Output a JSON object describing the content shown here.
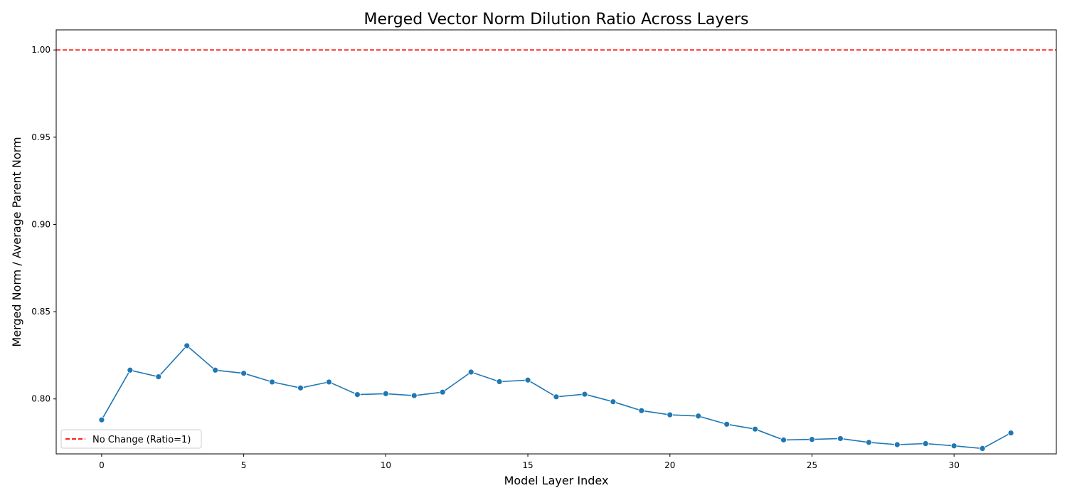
{
  "chart_data": {
    "type": "line",
    "title": "Merged Vector Norm Dilution Ratio Across Layers",
    "xlabel": "Model Layer Index",
    "ylabel": "Merged Norm / Average Parent Norm",
    "xlim": [
      -1.6,
      33.6
    ],
    "ylim": [
      0.7685,
      1.0115
    ],
    "xticks": [
      0,
      5,
      10,
      15,
      20,
      25,
      30
    ],
    "xtick_labels": [
      "0",
      "5",
      "10",
      "15",
      "20",
      "25",
      "30"
    ],
    "yticks": [
      0.8,
      0.85,
      0.9,
      0.95,
      1.0
    ],
    "ytick_labels": [
      "0.80",
      "0.85",
      "0.90",
      "0.95",
      "1.00"
    ],
    "grid": false,
    "legend_position": "lower-left",
    "series": [
      {
        "color": "#1f77b4",
        "marker": "circle",
        "x": [
          0,
          1,
          2,
          3,
          4,
          5,
          6,
          7,
          8,
          9,
          10,
          11,
          12,
          13,
          14,
          15,
          16,
          17,
          18,
          19,
          20,
          21,
          22,
          23,
          24,
          25,
          26,
          27,
          28,
          29,
          30,
          31,
          32
        ],
        "values": [
          0.788,
          0.8165,
          0.8127,
          0.8305,
          0.8165,
          0.8147,
          0.8097,
          0.8063,
          0.8097,
          0.8025,
          0.803,
          0.8019,
          0.8039,
          0.8154,
          0.8099,
          0.8108,
          0.8012,
          0.8027,
          0.7984,
          0.7933,
          0.7909,
          0.7902,
          0.7855,
          0.7827,
          0.7765,
          0.7768,
          0.7773,
          0.7751,
          0.7738,
          0.7744,
          0.7731,
          0.7716,
          0.7805
        ]
      }
    ],
    "reference_lines": [
      {
        "y": 1.0,
        "color": "#ff0000",
        "style": "dashed",
        "label": "No Change (Ratio=1)"
      }
    ]
  }
}
